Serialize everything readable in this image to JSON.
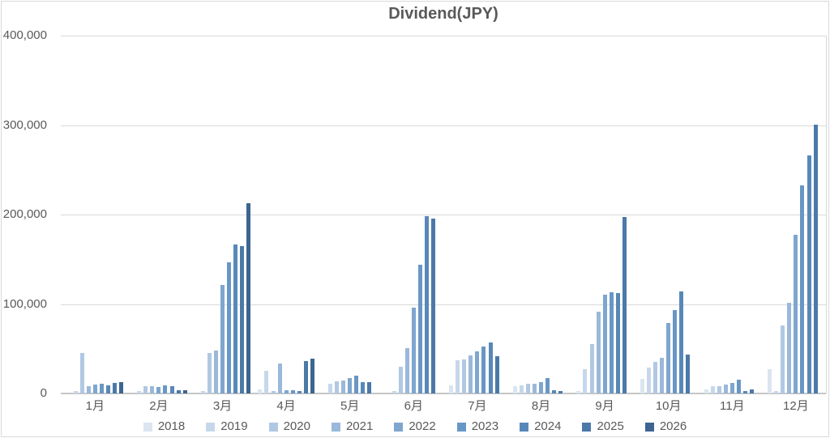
{
  "chart_data": {
    "type": "bar",
    "title": "Dividend(JPY)",
    "categories": [
      "1月",
      "2月",
      "3月",
      "4月",
      "5月",
      "6月",
      "7月",
      "8月",
      "9月",
      "10月",
      "11月",
      "12月"
    ],
    "series": [
      {
        "name": "2018",
        "color": "#dbe5f1",
        "values": [
          0,
          0,
          0,
          4500,
          0,
          0,
          9000,
          8000,
          2700,
          16400,
          4800,
          27000
        ]
      },
      {
        "name": "2019",
        "color": "#c7d7eb",
        "values": [
          2400,
          3000,
          3000,
          25400,
          10900,
          2700,
          37300,
          9000,
          27300,
          29000,
          8500,
          2400
        ]
      },
      {
        "name": "2020",
        "color": "#b1c8e3",
        "values": [
          44900,
          7900,
          45000,
          2400,
          13600,
          30000,
          38200,
          10500,
          55500,
          35500,
          8500,
          76300
        ]
      },
      {
        "name": "2021",
        "color": "#9ab8da",
        "values": [
          8500,
          7900,
          47600,
          33600,
          14500,
          51000,
          42700,
          11000,
          91000,
          40000,
          10300,
          101800
        ]
      },
      {
        "name": "2022",
        "color": "#7ea6cf",
        "values": [
          9700,
          7300,
          121500,
          3600,
          17300,
          95500,
          47300,
          13000,
          110000,
          79000,
          12100,
          177000
        ]
      },
      {
        "name": "2023",
        "color": "#6997c5",
        "values": [
          10900,
          9100,
          147000,
          3600,
          20000,
          143500,
          52700,
          17500,
          113000,
          93000,
          15700,
          233000
        ]
      },
      {
        "name": "2024",
        "color": "#5888b8",
        "values": [
          9100,
          7900,
          166500,
          2400,
          12700,
          198000,
          57300,
          3500,
          112000,
          113600,
          3000,
          266400
        ]
      },
      {
        "name": "2025",
        "color": "#4b79a8",
        "values": [
          12100,
          3600,
          164500,
          36300,
          12700,
          195500,
          41800,
          2500,
          197300,
          43600,
          4800,
          300600
        ]
      },
      {
        "name": "2026",
        "color": "#3d6591",
        "values": [
          12700,
          3600,
          213000,
          39000,
          0,
          0,
          0,
          0,
          0,
          0,
          0,
          0
        ]
      }
    ],
    "xlabel": "",
    "ylabel": "",
    "ylim": [
      0,
      400000
    ],
    "y_ticks": [
      0,
      100000,
      200000,
      300000,
      400000
    ],
    "y_tick_labels": [
      "0",
      "100,000",
      "200,000",
      "300,000",
      "400,000"
    ],
    "grid": true,
    "legend_position": "bottom",
    "grid_color": "#d9d9d9",
    "text_color": "#595959"
  }
}
